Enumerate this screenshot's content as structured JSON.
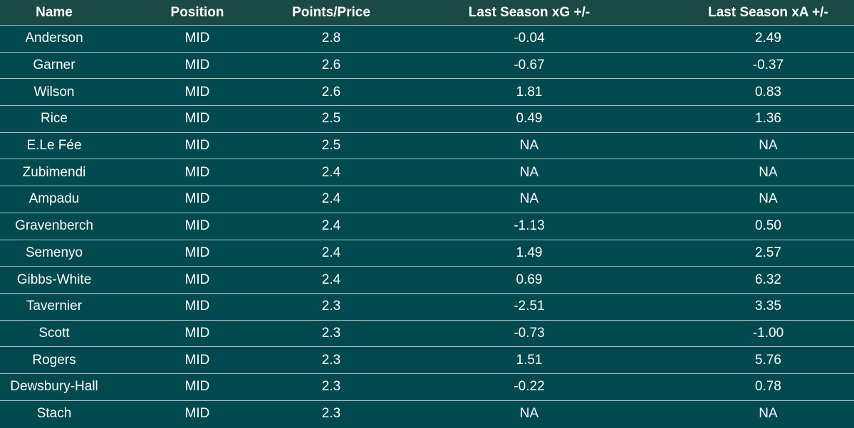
{
  "table": {
    "header": [
      "Name",
      "Position",
      "Points/Price",
      "Last Season xG +/-",
      "Last Season xA +/-"
    ],
    "rows": [
      [
        "Anderson",
        "MID",
        "2.8",
        "-0.04",
        "2.49"
      ],
      [
        "Garner",
        "MID",
        "2.6",
        "-0.67",
        "-0.37"
      ],
      [
        "Wilson",
        "MID",
        "2.6",
        "1.81",
        "0.83"
      ],
      [
        "Rice",
        "MID",
        "2.5",
        "0.49",
        "1.36"
      ],
      [
        "E.Le Fée",
        "MID",
        "2.5",
        "NA",
        "NA"
      ],
      [
        "Zubimendi",
        "MID",
        "2.4",
        "NA",
        "NA"
      ],
      [
        "Ampadu",
        "MID",
        "2.4",
        "NA",
        "NA"
      ],
      [
        "Gravenberch",
        "MID",
        "2.4",
        "-1.13",
        "0.50"
      ],
      [
        "Semenyo",
        "MID",
        "2.4",
        "1.49",
        "2.57"
      ],
      [
        "Gibbs-White",
        "MID",
        "2.4",
        "0.69",
        "6.32"
      ],
      [
        "Tavernier",
        "MID",
        "2.3",
        "-2.51",
        "3.35"
      ],
      [
        "Scott",
        "MID",
        "2.3",
        "-0.73",
        "-1.00"
      ],
      [
        "Rogers",
        "MID",
        "2.3",
        "1.51",
        "5.76"
      ],
      [
        "Dewsbury-Hall",
        "MID",
        "2.3",
        "-0.22",
        "0.78"
      ],
      [
        "Stach",
        "MID",
        "2.3",
        "NA",
        "NA"
      ]
    ]
  }
}
